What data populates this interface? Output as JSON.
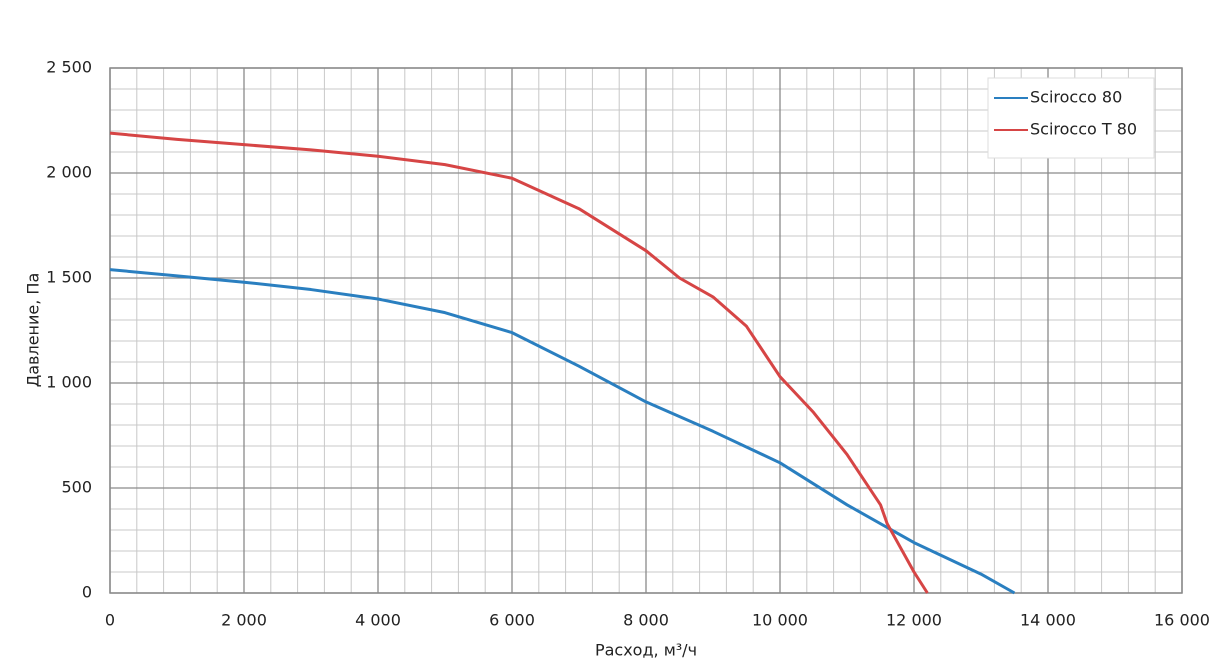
{
  "chart_data": {
    "type": "line",
    "x_label": "Расход, м³/ч",
    "y_label": "Давление, Па",
    "xlim": [
      0,
      16000
    ],
    "ylim": [
      0,
      2500
    ],
    "xticks": [
      0,
      {
        "value": 2000,
        "label": "2 000"
      },
      {
        "value": 4000,
        "label": "4 000"
      },
      {
        "value": 6000,
        "label": "6 000"
      },
      {
        "value": 8000,
        "label": "8 000"
      },
      {
        "value": 10000,
        "label": "10 000"
      },
      {
        "value": 12000,
        "label": "12 000"
      },
      {
        "value": 14000,
        "label": "14 000"
      },
      {
        "value": 16000,
        "label": "16 000"
      }
    ],
    "yticks": [
      0,
      500,
      {
        "value": 1000,
        "label": "1 000"
      },
      {
        "value": 1500,
        "label": "1 500"
      },
      {
        "value": 2000,
        "label": "2 000"
      },
      {
        "value": 2500,
        "label": "2 500"
      }
    ],
    "x_minor_ticks": [
      400,
      800,
      1200,
      1600,
      2400,
      2800,
      3200,
      3600,
      4400,
      4800,
      5200,
      5600,
      6400,
      6800,
      7200,
      7600,
      8400,
      8800,
      9200,
      9600,
      10400,
      10800,
      11200,
      11600,
      12400,
      12800,
      13200,
      13600,
      14400,
      14800,
      15200,
      15600
    ],
    "y_minor_ticks": [
      100,
      200,
      300,
      400,
      600,
      700,
      800,
      900,
      1100,
      1200,
      1300,
      1400,
      1600,
      1700,
      1800,
      1900,
      2100,
      2200,
      2300,
      2400
    ],
    "grid": true,
    "legend": "upper right",
    "series": [
      {
        "name": "Scirocco 80",
        "color": "#2a7fc0",
        "x": [
          0,
          1000,
          2000,
          3000,
          4000,
          5000,
          6000,
          7000,
          8000,
          9000,
          10000,
          11000,
          12000,
          13000,
          13500
        ],
        "values": [
          1540,
          1510,
          1480,
          1445,
          1400,
          1335,
          1240,
          1080,
          910,
          770,
          620,
          420,
          240,
          90,
          0
        ]
      },
      {
        "name": "Scirocco T 80",
        "color": "#d64545",
        "x": [
          0,
          1000,
          2000,
          3000,
          4000,
          5000,
          6000,
          7000,
          8000,
          8500,
          9000,
          9500,
          10000,
          10500,
          11000,
          11500,
          11600,
          12000,
          12200
        ],
        "values": [
          2190,
          2160,
          2135,
          2110,
          2080,
          2040,
          1975,
          1830,
          1630,
          1500,
          1410,
          1270,
          1030,
          860,
          660,
          420,
          330,
          100,
          0
        ]
      }
    ]
  }
}
